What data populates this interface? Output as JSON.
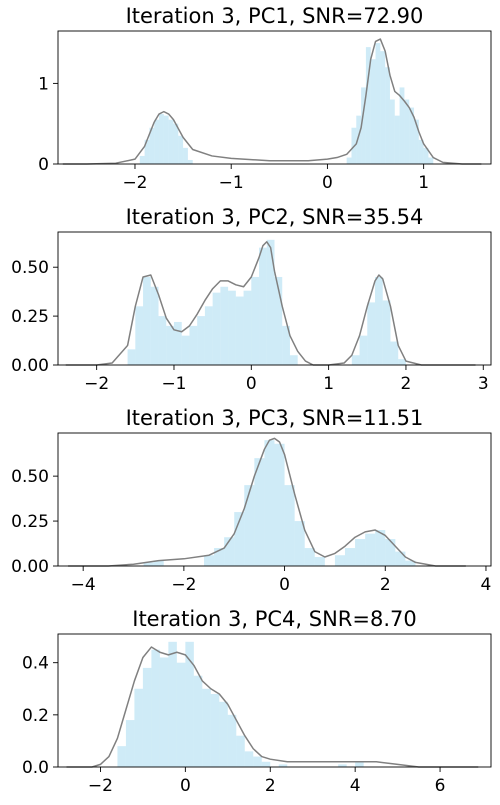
{
  "chart_data": [
    {
      "type": "histogram+kde",
      "title": "Iteration 3, PC1, SNR=72.90",
      "xlim": [
        -2.8,
        1.7
      ],
      "ylim": [
        0,
        1.65
      ],
      "xticks": [
        -2,
        -1,
        0,
        1
      ],
      "yticks": [
        0,
        1
      ],
      "hist_color": "#87ceeb",
      "kde_color": "#808080",
      "hist": {
        "bin_edges": [
          -1.95,
          -1.9,
          -1.85,
          -1.8,
          -1.75,
          -1.7,
          -1.65,
          -1.6,
          -1.55,
          -1.5,
          -1.45,
          -1.4,
          0.2,
          0.25,
          0.3,
          0.35,
          0.4,
          0.45,
          0.5,
          0.55,
          0.6,
          0.65,
          0.7,
          0.75,
          0.8,
          0.85,
          0.9,
          0.95,
          1.0,
          1.05,
          1.1
        ],
        "bins": [
          {
            "x0": -1.95,
            "x1": -1.9,
            "y": 0.1
          },
          {
            "x0": -1.9,
            "x1": -1.85,
            "y": 0.3
          },
          {
            "x0": -1.85,
            "x1": -1.8,
            "y": 0.45
          },
          {
            "x0": -1.8,
            "x1": -1.75,
            "y": 0.55
          },
          {
            "x0": -1.75,
            "x1": -1.7,
            "y": 0.62
          },
          {
            "x0": -1.7,
            "x1": -1.65,
            "y": 0.6
          },
          {
            "x0": -1.65,
            "x1": -1.6,
            "y": 0.55
          },
          {
            "x0": -1.6,
            "x1": -1.55,
            "y": 0.5
          },
          {
            "x0": -1.55,
            "x1": -1.5,
            "y": 0.35
          },
          {
            "x0": -1.5,
            "x1": -1.45,
            "y": 0.2
          },
          {
            "x0": -1.45,
            "x1": -1.4,
            "y": 0.05
          },
          {
            "x0": 0.2,
            "x1": 0.25,
            "y": 0.08
          },
          {
            "x0": 0.25,
            "x1": 0.3,
            "y": 0.45
          },
          {
            "x0": 0.3,
            "x1": 0.35,
            "y": 0.6
          },
          {
            "x0": 0.35,
            "x1": 0.4,
            "y": 0.95
          },
          {
            "x0": 0.4,
            "x1": 0.45,
            "y": 1.45
          },
          {
            "x0": 0.45,
            "x1": 0.5,
            "y": 1.3
          },
          {
            "x0": 0.5,
            "x1": 0.55,
            "y": 1.5
          },
          {
            "x0": 0.55,
            "x1": 0.6,
            "y": 1.4
          },
          {
            "x0": 0.6,
            "x1": 0.65,
            "y": 1.2
          },
          {
            "x0": 0.65,
            "x1": 0.7,
            "y": 0.8
          },
          {
            "x0": 0.7,
            "x1": 0.75,
            "y": 0.6
          },
          {
            "x0": 0.75,
            "x1": 0.8,
            "y": 0.95
          },
          {
            "x0": 0.8,
            "x1": 0.85,
            "y": 0.8
          },
          {
            "x0": 0.85,
            "x1": 0.9,
            "y": 0.7
          },
          {
            "x0": 0.9,
            "x1": 0.95,
            "y": 0.55
          },
          {
            "x0": 0.95,
            "x1": 1.0,
            "y": 0.3
          },
          {
            "x0": 1.0,
            "x1": 1.05,
            "y": 0.2
          },
          {
            "x0": 1.05,
            "x1": 1.1,
            "y": 0.08
          }
        ]
      },
      "kde": {
        "x": [
          -2.75,
          -2.5,
          -2.2,
          -2.0,
          -1.9,
          -1.8,
          -1.75,
          -1.7,
          -1.65,
          -1.6,
          -1.5,
          -1.4,
          -1.2,
          -1.0,
          -0.6,
          -0.2,
          0.0,
          0.1,
          0.2,
          0.3,
          0.35,
          0.4,
          0.45,
          0.5,
          0.55,
          0.6,
          0.65,
          0.7,
          0.75,
          0.8,
          0.85,
          0.9,
          0.95,
          1.0,
          1.1,
          1.2,
          1.4,
          1.6
        ],
        "y": [
          0.0,
          0.0,
          0.01,
          0.06,
          0.22,
          0.52,
          0.62,
          0.65,
          0.62,
          0.55,
          0.33,
          0.18,
          0.1,
          0.07,
          0.04,
          0.04,
          0.06,
          0.08,
          0.12,
          0.25,
          0.45,
          0.85,
          1.3,
          1.52,
          1.55,
          1.4,
          1.1,
          0.9,
          0.85,
          0.78,
          0.7,
          0.58,
          0.4,
          0.25,
          0.08,
          0.02,
          0.0,
          0.0
        ]
      }
    },
    {
      "type": "histogram+kde",
      "title": "Iteration 3, PC2, SNR=35.54",
      "xlim": [
        -2.5,
        3.1
      ],
      "ylim": [
        0,
        0.68
      ],
      "xticks": [
        -2,
        -1,
        0,
        1,
        2,
        3
      ],
      "yticks": [
        0.0,
        0.25,
        0.5
      ],
      "ytick_labels": [
        "0.00",
        "0.25",
        "0.50"
      ],
      "hist_color": "#87ceeb",
      "kde_color": "#808080",
      "hist": {
        "bins": [
          {
            "x0": -1.6,
            "x1": -1.5,
            "y": 0.08
          },
          {
            "x0": -1.5,
            "x1": -1.4,
            "y": 0.3
          },
          {
            "x0": -1.4,
            "x1": -1.3,
            "y": 0.45
          },
          {
            "x0": -1.3,
            "x1": -1.2,
            "y": 0.4
          },
          {
            "x0": -1.2,
            "x1": -1.1,
            "y": 0.25
          },
          {
            "x0": -1.1,
            "x1": -1.0,
            "y": 0.2
          },
          {
            "x0": -1.0,
            "x1": -0.9,
            "y": 0.22
          },
          {
            "x0": -0.9,
            "x1": -0.8,
            "y": 0.15
          },
          {
            "x0": -0.8,
            "x1": -0.7,
            "y": 0.2
          },
          {
            "x0": -0.7,
            "x1": -0.6,
            "y": 0.25
          },
          {
            "x0": -0.6,
            "x1": -0.5,
            "y": 0.3
          },
          {
            "x0": -0.5,
            "x1": -0.4,
            "y": 0.37
          },
          {
            "x0": -0.4,
            "x1": -0.3,
            "y": 0.4
          },
          {
            "x0": -0.3,
            "x1": -0.2,
            "y": 0.38
          },
          {
            "x0": -0.2,
            "x1": -0.1,
            "y": 0.35
          },
          {
            "x0": -0.1,
            "x1": 0.0,
            "y": 0.38
          },
          {
            "x0": 0.0,
            "x1": 0.1,
            "y": 0.45
          },
          {
            "x0": 0.1,
            "x1": 0.2,
            "y": 0.6
          },
          {
            "x0": 0.2,
            "x1": 0.3,
            "y": 0.64
          },
          {
            "x0": 0.3,
            "x1": 0.4,
            "y": 0.45
          },
          {
            "x0": 0.4,
            "x1": 0.5,
            "y": 0.2
          },
          {
            "x0": 0.5,
            "x1": 0.6,
            "y": 0.05
          },
          {
            "x0": 1.3,
            "x1": 1.4,
            "y": 0.05
          },
          {
            "x0": 1.4,
            "x1": 1.5,
            "y": 0.15
          },
          {
            "x0": 1.5,
            "x1": 1.6,
            "y": 0.32
          },
          {
            "x0": 1.6,
            "x1": 1.7,
            "y": 0.45
          },
          {
            "x0": 1.7,
            "x1": 1.8,
            "y": 0.33
          },
          {
            "x0": 1.8,
            "x1": 1.9,
            "y": 0.12
          },
          {
            "x0": 1.9,
            "x1": 2.0,
            "y": 0.03
          }
        ]
      },
      "kde": {
        "x": [
          -2.4,
          -2.0,
          -1.8,
          -1.6,
          -1.5,
          -1.4,
          -1.3,
          -1.2,
          -1.1,
          -1.0,
          -0.9,
          -0.8,
          -0.7,
          -0.6,
          -0.5,
          -0.4,
          -0.3,
          -0.2,
          -0.1,
          0.0,
          0.1,
          0.15,
          0.2,
          0.25,
          0.3,
          0.4,
          0.5,
          0.6,
          0.7,
          0.8,
          1.0,
          1.2,
          1.3,
          1.4,
          1.5,
          1.6,
          1.65,
          1.7,
          1.8,
          1.9,
          2.0,
          2.2,
          2.5,
          2.9
        ],
        "y": [
          0.0,
          0.0,
          0.01,
          0.1,
          0.3,
          0.45,
          0.46,
          0.36,
          0.24,
          0.18,
          0.17,
          0.2,
          0.26,
          0.33,
          0.39,
          0.43,
          0.43,
          0.41,
          0.4,
          0.45,
          0.55,
          0.61,
          0.63,
          0.6,
          0.48,
          0.3,
          0.15,
          0.07,
          0.02,
          0.0,
          0.0,
          0.01,
          0.05,
          0.15,
          0.3,
          0.43,
          0.46,
          0.44,
          0.3,
          0.1,
          0.02,
          0.0,
          0.0,
          0.0
        ]
      }
    },
    {
      "type": "histogram+kde",
      "title": "Iteration 3, PC3, SNR=11.51",
      "xlim": [
        -4.5,
        4.1
      ],
      "ylim": [
        0,
        0.74
      ],
      "xticks": [
        -4,
        -2,
        0,
        2,
        4
      ],
      "yticks": [
        0.0,
        0.25,
        0.5
      ],
      "ytick_labels": [
        "0.00",
        "0.25",
        "0.50"
      ],
      "hist_color": "#87ceeb",
      "kde_color": "#808080",
      "hist": {
        "bins": [
          {
            "x0": -2.8,
            "x1": -2.6,
            "y": 0.02
          },
          {
            "x0": -2.6,
            "x1": -2.4,
            "y": 0.03
          },
          {
            "x0": -1.6,
            "x1": -1.4,
            "y": 0.06
          },
          {
            "x0": -1.4,
            "x1": -1.2,
            "y": 0.1
          },
          {
            "x0": -1.2,
            "x1": -1.0,
            "y": 0.16
          },
          {
            "x0": -1.0,
            "x1": -0.8,
            "y": 0.3
          },
          {
            "x0": -0.8,
            "x1": -0.6,
            "y": 0.45
          },
          {
            "x0": -0.6,
            "x1": -0.4,
            "y": 0.6
          },
          {
            "x0": -0.4,
            "x1": -0.2,
            "y": 0.7
          },
          {
            "x0": -0.2,
            "x1": 0.0,
            "y": 0.68
          },
          {
            "x0": 0.0,
            "x1": 0.2,
            "y": 0.45
          },
          {
            "x0": 0.2,
            "x1": 0.4,
            "y": 0.25
          },
          {
            "x0": 0.4,
            "x1": 0.6,
            "y": 0.1
          },
          {
            "x0": 0.6,
            "x1": 0.8,
            "y": 0.05
          },
          {
            "x0": 1.0,
            "x1": 1.2,
            "y": 0.06
          },
          {
            "x0": 1.2,
            "x1": 1.4,
            "y": 0.1
          },
          {
            "x0": 1.4,
            "x1": 1.6,
            "y": 0.15
          },
          {
            "x0": 1.6,
            "x1": 1.8,
            "y": 0.18
          },
          {
            "x0": 1.8,
            "x1": 2.0,
            "y": 0.2
          },
          {
            "x0": 2.0,
            "x1": 2.2,
            "y": 0.15
          },
          {
            "x0": 2.2,
            "x1": 2.4,
            "y": 0.08
          },
          {
            "x0": 2.4,
            "x1": 2.6,
            "y": 0.03
          }
        ]
      },
      "kde": {
        "x": [
          -4.3,
          -3.5,
          -3.0,
          -2.5,
          -2.0,
          -1.5,
          -1.2,
          -1.0,
          -0.8,
          -0.6,
          -0.4,
          -0.3,
          -0.2,
          -0.1,
          0.0,
          0.2,
          0.4,
          0.6,
          0.8,
          1.0,
          1.2,
          1.4,
          1.6,
          1.8,
          2.0,
          2.2,
          2.4,
          2.6,
          3.0,
          3.6
        ],
        "y": [
          0.0,
          0.0,
          0.01,
          0.03,
          0.04,
          0.06,
          0.1,
          0.18,
          0.32,
          0.5,
          0.65,
          0.7,
          0.71,
          0.69,
          0.62,
          0.4,
          0.2,
          0.08,
          0.05,
          0.07,
          0.11,
          0.16,
          0.19,
          0.2,
          0.17,
          0.11,
          0.05,
          0.02,
          0.0,
          0.0
        ]
      }
    },
    {
      "type": "histogram+kde",
      "title": "Iteration 3, PC4, SNR=8.70",
      "xlim": [
        -3.0,
        7.2
      ],
      "ylim": [
        0,
        0.51
      ],
      "xticks": [
        -2,
        0,
        2,
        4,
        6
      ],
      "yticks": [
        0.0,
        0.2,
        0.4
      ],
      "ytick_labels": [
        "0.0",
        "0.2",
        "0.4"
      ],
      "hist_color": "#87ceeb",
      "kde_color": "#808080",
      "hist": {
        "bins": [
          {
            "x0": -1.6,
            "x1": -1.4,
            "y": 0.08
          },
          {
            "x0": -1.4,
            "x1": -1.2,
            "y": 0.18
          },
          {
            "x0": -1.2,
            "x1": -1.0,
            "y": 0.3
          },
          {
            "x0": -1.0,
            "x1": -0.8,
            "y": 0.38
          },
          {
            "x0": -0.8,
            "x1": -0.6,
            "y": 0.45
          },
          {
            "x0": -0.6,
            "x1": -0.4,
            "y": 0.42
          },
          {
            "x0": -0.4,
            "x1": -0.2,
            "y": 0.48
          },
          {
            "x0": -0.2,
            "x1": 0.0,
            "y": 0.4
          },
          {
            "x0": 0.0,
            "x1": 0.2,
            "y": 0.48
          },
          {
            "x0": 0.2,
            "x1": 0.4,
            "y": 0.35
          },
          {
            "x0": 0.4,
            "x1": 0.6,
            "y": 0.3
          },
          {
            "x0": 0.6,
            "x1": 0.8,
            "y": 0.28
          },
          {
            "x0": 0.8,
            "x1": 1.0,
            "y": 0.25
          },
          {
            "x0": 1.0,
            "x1": 1.2,
            "y": 0.2
          },
          {
            "x0": 1.2,
            "x1": 1.4,
            "y": 0.12
          },
          {
            "x0": 1.4,
            "x1": 1.6,
            "y": 0.06
          },
          {
            "x0": 1.6,
            "x1": 1.8,
            "y": 0.04
          },
          {
            "x0": 1.8,
            "x1": 2.0,
            "y": 0.02
          },
          {
            "x0": 2.2,
            "x1": 2.4,
            "y": 0.01
          },
          {
            "x0": 3.6,
            "x1": 3.8,
            "y": 0.01
          },
          {
            "x0": 4.0,
            "x1": 4.2,
            "y": 0.02
          }
        ]
      },
      "kde": {
        "x": [
          -2.8,
          -2.2,
          -2.0,
          -1.8,
          -1.6,
          -1.4,
          -1.2,
          -1.0,
          -0.8,
          -0.6,
          -0.4,
          -0.2,
          0.0,
          0.2,
          0.4,
          0.6,
          0.8,
          1.0,
          1.2,
          1.4,
          1.6,
          1.8,
          2.0,
          2.4,
          3.0,
          3.5,
          4.0,
          4.5,
          5.0,
          5.5,
          6.0,
          6.9
        ],
        "y": [
          0.0,
          0.0,
          0.01,
          0.04,
          0.11,
          0.22,
          0.33,
          0.42,
          0.46,
          0.44,
          0.43,
          0.44,
          0.43,
          0.39,
          0.33,
          0.3,
          0.28,
          0.24,
          0.18,
          0.12,
          0.07,
          0.04,
          0.03,
          0.02,
          0.02,
          0.02,
          0.02,
          0.02,
          0.01,
          0.0,
          0.0,
          0.0
        ]
      }
    }
  ]
}
